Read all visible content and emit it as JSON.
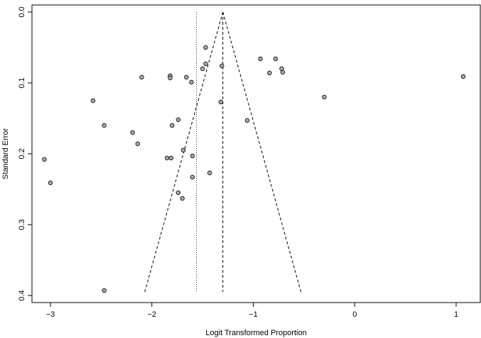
{
  "chart_data": {
    "type": "scatter",
    "title": "",
    "xlabel": "Logit Transformed Proportion",
    "ylabel": "Standard Error",
    "xlim": [
      -3.13,
      1.25
    ],
    "ylim": [
      0,
      0.4
    ],
    "y_reversed": true,
    "x_ticks": [
      -3,
      -2,
      -1,
      0,
      1
    ],
    "x_tick_labels": [
      "−3",
      "−2",
      "−1",
      "0",
      "1"
    ],
    "y_ticks": [
      0.0,
      0.1,
      0.2,
      0.3,
      0.4
    ],
    "y_tick_labels": [
      "0.0",
      "0.1",
      "0.2",
      "0.3",
      "0.4"
    ],
    "grid": false,
    "point_color": "#a9a9a9",
    "funnel": {
      "center": -1.3,
      "apex_se": 0,
      "base_se": 0.395,
      "base_left": -2.07,
      "base_right": -0.53,
      "line_style": "dashed"
    },
    "reference_line": {
      "x": -1.56,
      "line_style": "dotted"
    },
    "points": [
      {
        "x": -1.47,
        "y": 0.05
      },
      {
        "x": -0.93,
        "y": 0.066
      },
      {
        "x": -0.78,
        "y": 0.066
      },
      {
        "x": -1.47,
        "y": 0.073
      },
      {
        "x": -1.31,
        "y": 0.076
      },
      {
        "x": -1.5,
        "y": 0.08
      },
      {
        "x": -0.72,
        "y": 0.08
      },
      {
        "x": -0.84,
        "y": 0.086
      },
      {
        "x": -0.71,
        "y": 0.085
      },
      {
        "x": -1.82,
        "y": 0.09
      },
      {
        "x": -2.1,
        "y": 0.092
      },
      {
        "x": -1.82,
        "y": 0.093
      },
      {
        "x": -1.66,
        "y": 0.092
      },
      {
        "x": 1.07,
        "y": 0.091
      },
      {
        "x": -1.61,
        "y": 0.099
      },
      {
        "x": -0.3,
        "y": 0.12
      },
      {
        "x": -2.58,
        "y": 0.125
      },
      {
        "x": -1.32,
        "y": 0.127
      },
      {
        "x": -1.74,
        "y": 0.152
      },
      {
        "x": -1.06,
        "y": 0.153
      },
      {
        "x": -2.47,
        "y": 0.16
      },
      {
        "x": -1.8,
        "y": 0.16
      },
      {
        "x": -2.19,
        "y": 0.17
      },
      {
        "x": -2.14,
        "y": 0.186
      },
      {
        "x": -1.69,
        "y": 0.195
      },
      {
        "x": -1.6,
        "y": 0.203
      },
      {
        "x": -1.85,
        "y": 0.206
      },
      {
        "x": -1.81,
        "y": 0.206
      },
      {
        "x": -3.06,
        "y": 0.208
      },
      {
        "x": -1.43,
        "y": 0.227
      },
      {
        "x": -1.6,
        "y": 0.233
      },
      {
        "x": -3.0,
        "y": 0.241
      },
      {
        "x": -1.74,
        "y": 0.255
      },
      {
        "x": -1.7,
        "y": 0.263
      },
      {
        "x": -2.47,
        "y": 0.393
      }
    ]
  }
}
